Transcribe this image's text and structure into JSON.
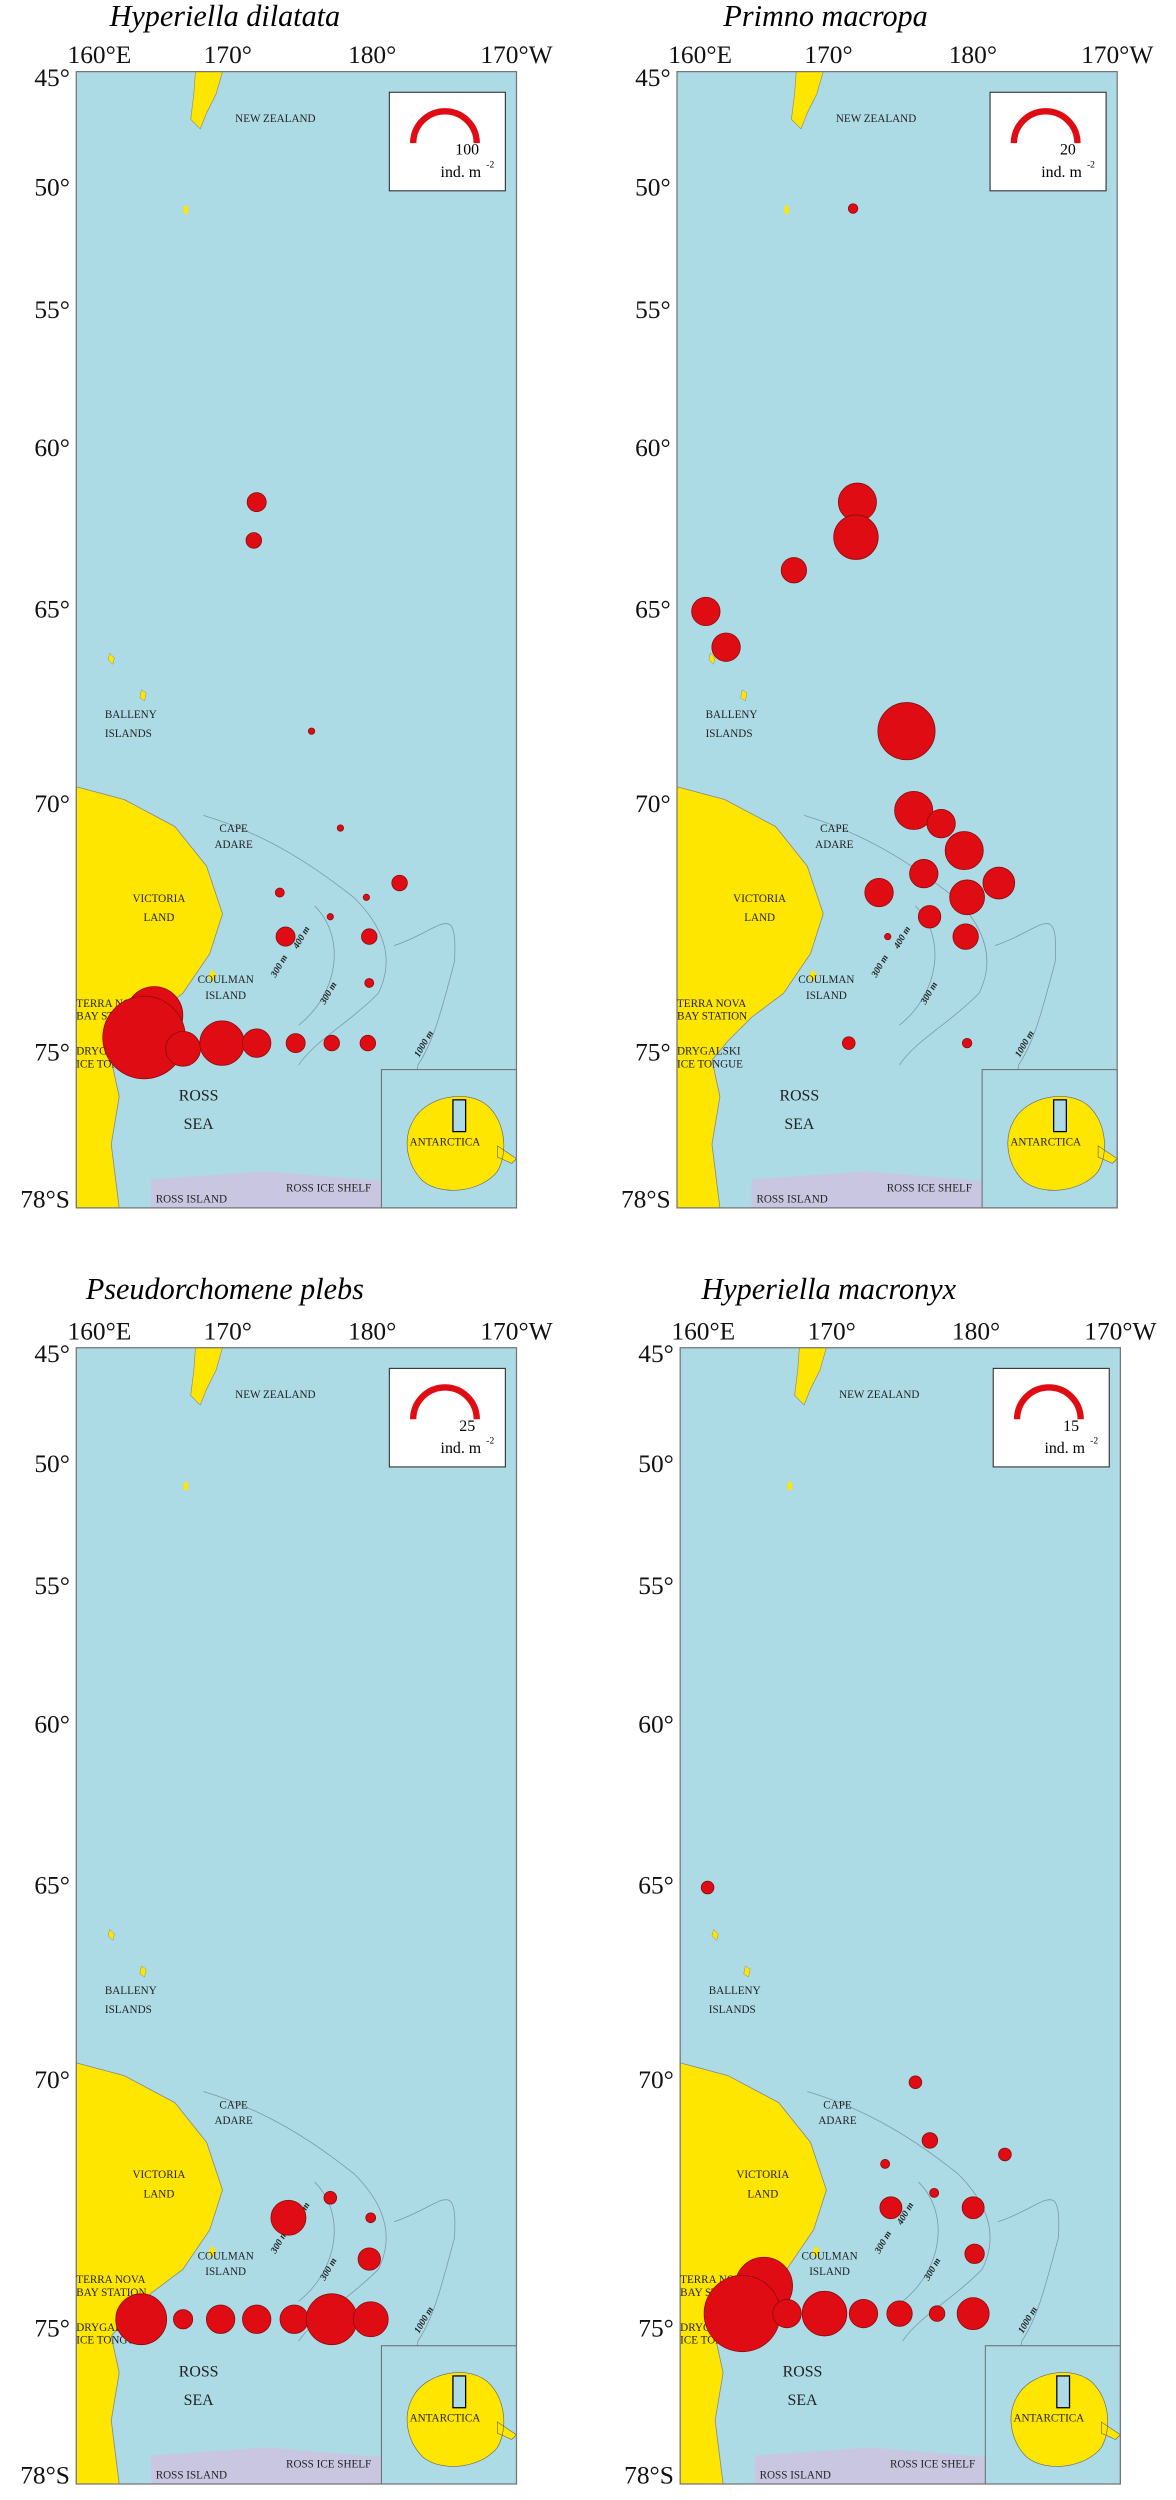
{
  "lon_ticks": [
    {
      "value": 160,
      "label": "160°E"
    },
    {
      "value": 170,
      "label": "170°"
    },
    {
      "value": 180,
      "label": "180°"
    },
    {
      "value": 190,
      "label": "170°W"
    }
  ],
  "lat_ticks": [
    {
      "value": 45,
      "label": "45°"
    },
    {
      "value": 50,
      "label": "50°"
    },
    {
      "value": 55,
      "label": "55°"
    },
    {
      "value": 60,
      "label": "60°"
    },
    {
      "value": 65,
      "label": "65°"
    },
    {
      "value": 70,
      "label": "70°"
    },
    {
      "value": 75,
      "label": "75°"
    },
    {
      "value": 78,
      "label": "78°S"
    }
  ],
  "place_labels": [
    "NEW ZEALAND",
    "BALLENY",
    "ISLANDS",
    "CAPE",
    "ADARE",
    "VICTORIA",
    "LAND",
    "COULMAN",
    "ISLAND",
    "TERRA NOVA",
    "BAY STATION",
    "DRYGALSKI",
    "ICE TONGUE",
    "ROSS",
    "SEA",
    "ROSS ISLAND",
    "ROSS ICE SHELF",
    "ANTARCTICA",
    "400 m",
    "300 m",
    "300 m",
    "1000 m"
  ],
  "legend_unit": "ind. m",
  "legend_unit_exp": "-2",
  "maps": [
    {
      "title": "Hyperiella dilatata",
      "legend_value": 100,
      "stations": [
        {
          "lon": 172.0,
          "lat": 61.7,
          "value": 9
        },
        {
          "lon": 171.8,
          "lat": 62.9,
          "value": 6
        },
        {
          "lon": 175.8,
          "lat": 68.2,
          "value": 1
        },
        {
          "lon": 177.8,
          "lat": 70.5,
          "value": 1
        },
        {
          "lon": 181.9,
          "lat": 71.7,
          "value": 6
        },
        {
          "lon": 173.6,
          "lat": 71.9,
          "value": 2
        },
        {
          "lon": 177.1,
          "lat": 72.4,
          "value": 1
        },
        {
          "lon": 179.6,
          "lat": 72.0,
          "value": 1
        },
        {
          "lon": 174.0,
          "lat": 72.8,
          "value": 9
        },
        {
          "lon": 179.8,
          "lat": 72.8,
          "value": 6
        },
        {
          "lon": 179.8,
          "lat": 73.7,
          "value": 2
        },
        {
          "lon": 164.9,
          "lat": 74.3,
          "value": 81
        },
        {
          "lon": 164.2,
          "lat": 74.7,
          "value": 169
        },
        {
          "lon": 166.9,
          "lat": 74.9,
          "value": 30
        },
        {
          "lon": 169.6,
          "lat": 74.8,
          "value": 49
        },
        {
          "lon": 172.0,
          "lat": 74.8,
          "value": 20
        },
        {
          "lon": 174.7,
          "lat": 74.8,
          "value": 9
        },
        {
          "lon": 177.2,
          "lat": 74.8,
          "value": 6
        },
        {
          "lon": 179.7,
          "lat": 74.8,
          "value": 6
        }
      ]
    },
    {
      "title": "Primno macropa",
      "legend_value": 20,
      "stations": [
        {
          "lon": 171.7,
          "lat": 50.8,
          "value": 0.45
        },
        {
          "lon": 172.0,
          "lat": 61.7,
          "value": 7.2
        },
        {
          "lon": 171.9,
          "lat": 62.8,
          "value": 9.8
        },
        {
          "lon": 167.6,
          "lat": 63.8,
          "value": 3.2
        },
        {
          "lon": 161.5,
          "lat": 65.0,
          "value": 4
        },
        {
          "lon": 162.9,
          "lat": 66.0,
          "value": 4
        },
        {
          "lon": 175.4,
          "lat": 68.2,
          "value": 16.2
        },
        {
          "lon": 175.9,
          "lat": 70.1,
          "value": 7.2
        },
        {
          "lon": 177.8,
          "lat": 70.4,
          "value": 4
        },
        {
          "lon": 179.4,
          "lat": 71.0,
          "value": 7.2
        },
        {
          "lon": 181.8,
          "lat": 71.7,
          "value": 5
        },
        {
          "lon": 176.6,
          "lat": 71.5,
          "value": 4
        },
        {
          "lon": 173.5,
          "lat": 71.9,
          "value": 4
        },
        {
          "lon": 179.6,
          "lat": 72.0,
          "value": 6
        },
        {
          "lon": 177.0,
          "lat": 72.4,
          "value": 2.5
        },
        {
          "lon": 179.5,
          "lat": 72.8,
          "value": 3.2
        },
        {
          "lon": 174.1,
          "lat": 72.8,
          "value": 0.2
        },
        {
          "lon": 171.4,
          "lat": 74.8,
          "value": 0.8
        },
        {
          "lon": 179.6,
          "lat": 74.8,
          "value": 0.45
        }
      ]
    },
    {
      "title": "Pseudorchomene plebs",
      "legend_value": 25,
      "stations": [
        {
          "lon": 174.2,
          "lat": 72.9,
          "value": 7.6
        },
        {
          "lon": 177.1,
          "lat": 72.5,
          "value": 1
        },
        {
          "lon": 179.9,
          "lat": 72.9,
          "value": 0.6
        },
        {
          "lon": 179.8,
          "lat": 73.7,
          "value": 3.1
        },
        {
          "lon": 164.0,
          "lat": 74.8,
          "value": 16
        },
        {
          "lon": 166.9,
          "lat": 74.8,
          "value": 2.3
        },
        {
          "lon": 169.5,
          "lat": 74.8,
          "value": 5
        },
        {
          "lon": 172.0,
          "lat": 74.8,
          "value": 5
        },
        {
          "lon": 174.6,
          "lat": 74.8,
          "value": 5
        },
        {
          "lon": 177.2,
          "lat": 74.8,
          "value": 16
        },
        {
          "lon": 179.9,
          "lat": 74.8,
          "value": 7.6
        }
      ]
    },
    {
      "title": "Hyperiella macronyx",
      "legend_value": 15,
      "stations": [
        {
          "lon": 161.4,
          "lat": 65.0,
          "value": 0.6
        },
        {
          "lon": 175.8,
          "lat": 70.0,
          "value": 0.6
        },
        {
          "lon": 176.8,
          "lat": 71.3,
          "value": 0.9
        },
        {
          "lon": 182.0,
          "lat": 71.6,
          "value": 0.6
        },
        {
          "lon": 173.7,
          "lat": 71.8,
          "value": 0.3
        },
        {
          "lon": 177.1,
          "lat": 72.4,
          "value": 0.3
        },
        {
          "lon": 174.1,
          "lat": 72.7,
          "value": 1.8
        },
        {
          "lon": 179.8,
          "lat": 72.7,
          "value": 1.8
        },
        {
          "lon": 179.9,
          "lat": 73.6,
          "value": 1.4
        },
        {
          "lon": 165.3,
          "lat": 74.2,
          "value": 12.2
        },
        {
          "lon": 163.8,
          "lat": 74.7,
          "value": 21.6
        },
        {
          "lon": 166.9,
          "lat": 74.7,
          "value": 3
        },
        {
          "lon": 169.5,
          "lat": 74.7,
          "value": 7.4
        },
        {
          "lon": 172.2,
          "lat": 74.7,
          "value": 3
        },
        {
          "lon": 174.7,
          "lat": 74.7,
          "value": 2.4
        },
        {
          "lon": 177.3,
          "lat": 74.7,
          "value": 0.9
        },
        {
          "lon": 179.8,
          "lat": 74.7,
          "value": 3.8
        }
      ]
    }
  ]
}
